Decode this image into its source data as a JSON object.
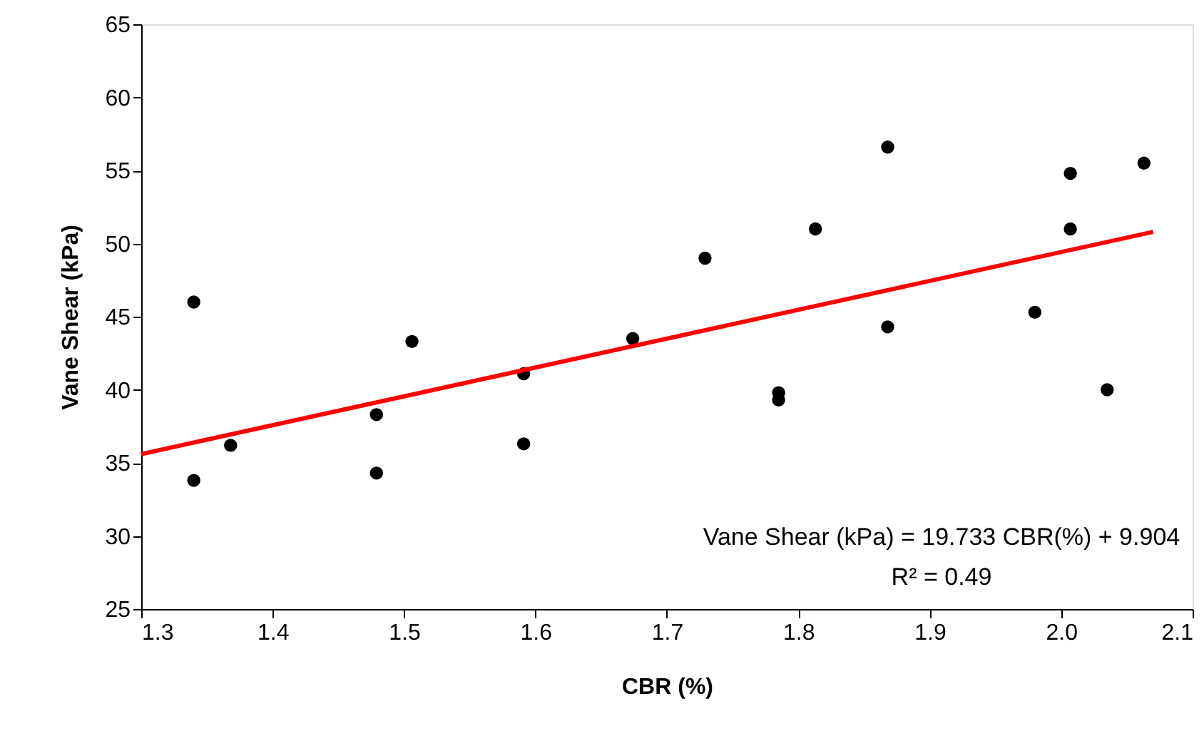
{
  "chart_data": {
    "type": "scatter",
    "xlabel": "CBR (%)",
    "ylabel": "Vane Shear (kPa)",
    "xlim": [
      1.3,
      2.1
    ],
    "xticks": [
      1.3,
      1.4,
      1.5,
      1.6,
      1.7,
      1.8,
      1.9,
      {
        "value": 2,
        "label": "2.0"
      },
      2.1
    ],
    "ylim": [
      25,
      65
    ],
    "yticks": [
      25,
      30,
      35,
      40,
      45,
      50,
      55,
      60,
      65
    ],
    "grid": false,
    "series": [
      {
        "color": "#000000",
        "marker": "circle",
        "x": [
          1.34,
          1.34,
          1.368,
          1.479,
          1.479,
          1.506,
          1.591,
          1.591,
          1.674,
          1.729,
          1.785,
          1.785,
          1.813,
          1.868,
          1.868,
          1.98,
          2.007,
          2.007,
          2.035,
          2.063
        ],
        "values": [
          46.0,
          33.8,
          36.2,
          38.3,
          34.3,
          43.3,
          41.1,
          36.3,
          43.5,
          49.0,
          39.8,
          39.3,
          51.0,
          56.6,
          44.3,
          45.3,
          54.8,
          51.0,
          40.0,
          55.5
        ]
      },
      {
        "type": "line",
        "color": "#ff0000",
        "x": [
          1.3,
          2.07
        ],
        "values": [
          35.6,
          50.8
        ],
        "line_style": "solid",
        "marker": "none"
      }
    ],
    "annotations": [
      "Vane Shear (kPa) = 19.733 CBR(%) + 9.904",
      "R² = 0.49"
    ]
  }
}
